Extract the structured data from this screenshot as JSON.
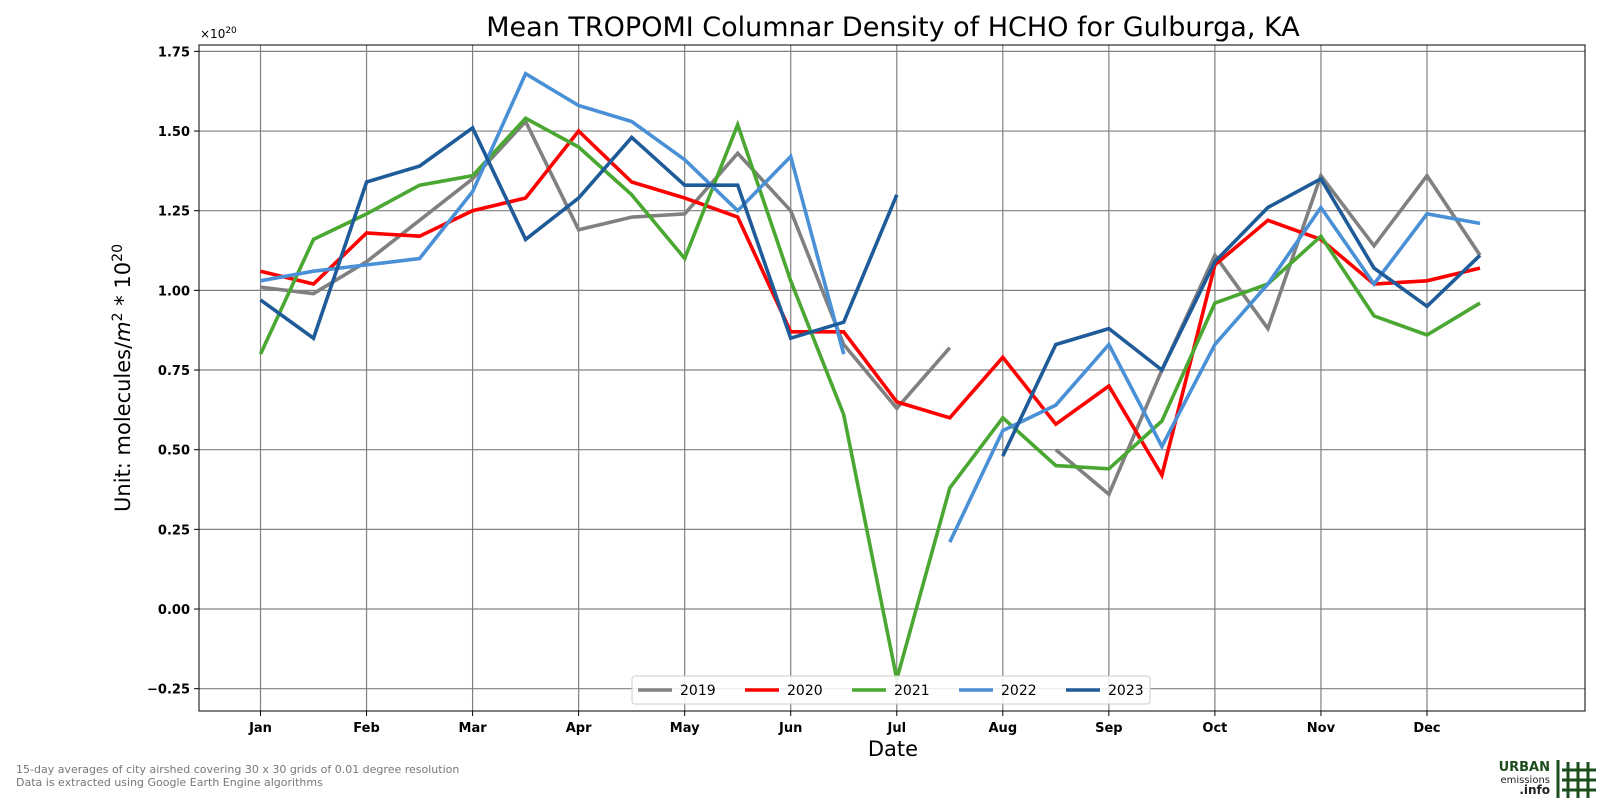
{
  "chart_data": {
    "type": "line",
    "title": "Mean TROPOMI Columnar Density of HCHO for Gulburga, KA",
    "xlabel": "Date",
    "ylabel_text": "Unit: molecules/",
    "ylabel_unit_m": "m",
    "ylabel_unit_exp": "2",
    "ylabel_tail": " * 10",
    "ylabel_tail_exp": "20",
    "sci_base": "×10",
    "sci_exp": "20",
    "x_tick_labels": [
      "Jan",
      "Feb",
      "Mar",
      "Apr",
      "May",
      "Jun",
      "Jul",
      "Aug",
      "Sep",
      "Oct",
      "Nov",
      "Dec"
    ],
    "y_tick_labels": [
      "1.75",
      "1.50",
      "1.25",
      "1.00",
      "0.75",
      "0.50",
      "0.25",
      "0.00",
      "−0.25"
    ],
    "y_ticks": [
      1.75,
      1.5,
      1.25,
      1.0,
      0.75,
      0.5,
      0.25,
      0.0,
      -0.25
    ],
    "ylim": [
      -0.32,
      1.77
    ],
    "xlim": [
      -0.58,
      12.49
    ],
    "grid": true,
    "legend_position": "lower-center",
    "x_note": "x = month index; 0 = Jan 1st half, 0.5 = Jan 2nd half, ... 11.5 = Dec 2nd half",
    "x": [
      0,
      0.5,
      1,
      1.5,
      2,
      2.5,
      3,
      3.5,
      4,
      4.5,
      5,
      5.5,
      6,
      6.5,
      7,
      7.5,
      8,
      8.5,
      9,
      9.5,
      10,
      10.5,
      11,
      11.5
    ],
    "series": [
      {
        "name": "2019",
        "color": "#808080",
        "values": [
          1.01,
          0.99,
          1.09,
          1.22,
          1.35,
          1.53,
          1.19,
          1.23,
          1.24,
          1.43,
          1.25,
          0.83,
          0.63,
          0.82,
          null,
          0.5,
          0.36,
          0.75,
          1.11,
          0.88,
          1.36,
          1.14,
          1.36,
          1.11
        ]
      },
      {
        "name": "2020",
        "color": "#ff0000",
        "values": [
          1.06,
          1.02,
          1.18,
          1.17,
          1.25,
          1.29,
          1.5,
          1.34,
          1.29,
          1.23,
          0.87,
          0.87,
          0.65,
          0.6,
          0.79,
          0.58,
          0.7,
          0.42,
          1.08,
          1.22,
          1.16,
          1.02,
          1.03,
          1.07
        ]
      },
      {
        "name": "2021",
        "color": "#4aa832",
        "values": [
          0.8,
          1.16,
          1.24,
          1.33,
          1.36,
          1.54,
          1.45,
          1.3,
          1.1,
          1.52,
          1.03,
          0.61,
          -0.22,
          0.38,
          0.6,
          0.45,
          0.44,
          0.59,
          0.96,
          1.02,
          1.17,
          0.92,
          0.86,
          0.96
        ]
      },
      {
        "name": "2022",
        "color": "#4a90d6",
        "values": [
          1.03,
          1.06,
          1.08,
          1.1,
          1.31,
          1.68,
          1.58,
          1.53,
          1.41,
          1.25,
          1.42,
          0.8,
          null,
          0.21,
          0.56,
          0.64,
          0.83,
          0.51,
          0.83,
          1.02,
          1.26,
          1.02,
          1.24,
          1.21
        ]
      },
      {
        "name": "2023",
        "color": "#1f5b99",
        "values": [
          0.97,
          0.85,
          1.34,
          1.39,
          1.51,
          1.16,
          1.29,
          1.48,
          1.33,
          1.33,
          0.85,
          0.9,
          1.3,
          null,
          0.48,
          0.83,
          0.88,
          0.75,
          1.09,
          1.26,
          1.35,
          1.07,
          0.95,
          1.11
        ]
      }
    ]
  },
  "footnote": {
    "line1": "15-day averages of city airshed covering 30 x 30 grids of 0.01 degree resolution",
    "line2": "Data is extracted using Google Earth Engine algorithms"
  },
  "logo": {
    "line1": "URBAN",
    "line2": "emissions",
    "line3": ".info"
  }
}
